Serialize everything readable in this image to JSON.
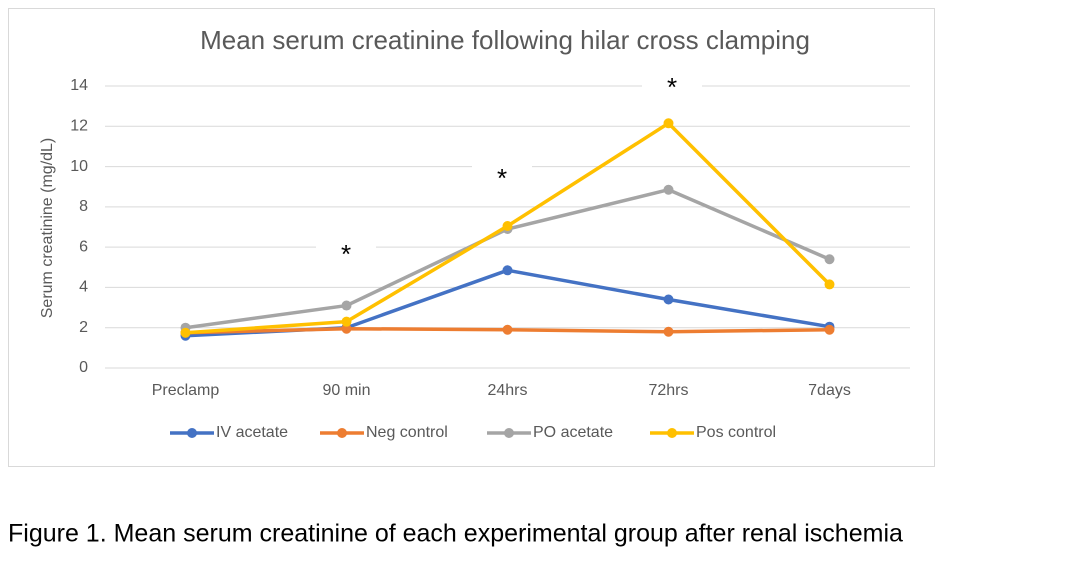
{
  "chart_data": {
    "type": "line",
    "title": "Mean serum creatinine following hilar cross clamping",
    "y_label": "Serum creatinine (mg/dL)",
    "categories": [
      "Preclamp",
      "90 min",
      "24hrs",
      "72hrs",
      "7days"
    ],
    "series": [
      {
        "name": "IV acetate",
        "color": "#4472c4",
        "values": [
          1.6,
          2.0,
          4.85,
          3.4,
          2.05
        ]
      },
      {
        "name": "Neg control",
        "color": "#ed7d31",
        "values": [
          1.75,
          1.95,
          1.9,
          1.8,
          1.9
        ]
      },
      {
        "name": "PO acetate",
        "color": "#a5a5a5",
        "values": [
          2.0,
          3.1,
          6.9,
          8.85,
          5.4
        ]
      },
      {
        "name": "Pos control",
        "color": "#ffc000",
        "values": [
          1.75,
          2.3,
          7.05,
          12.15,
          4.15
        ]
      }
    ],
    "annotations": [
      "*",
      "*",
      "*"
    ],
    "ylim": [
      0,
      14
    ],
    "yticks": [
      0,
      2,
      4,
      6,
      8,
      10,
      12,
      14
    ],
    "grid": true,
    "legend": "bottom"
  },
  "caption": "Figure 1. Mean serum creatinine of each experimental group after renal ischemia"
}
